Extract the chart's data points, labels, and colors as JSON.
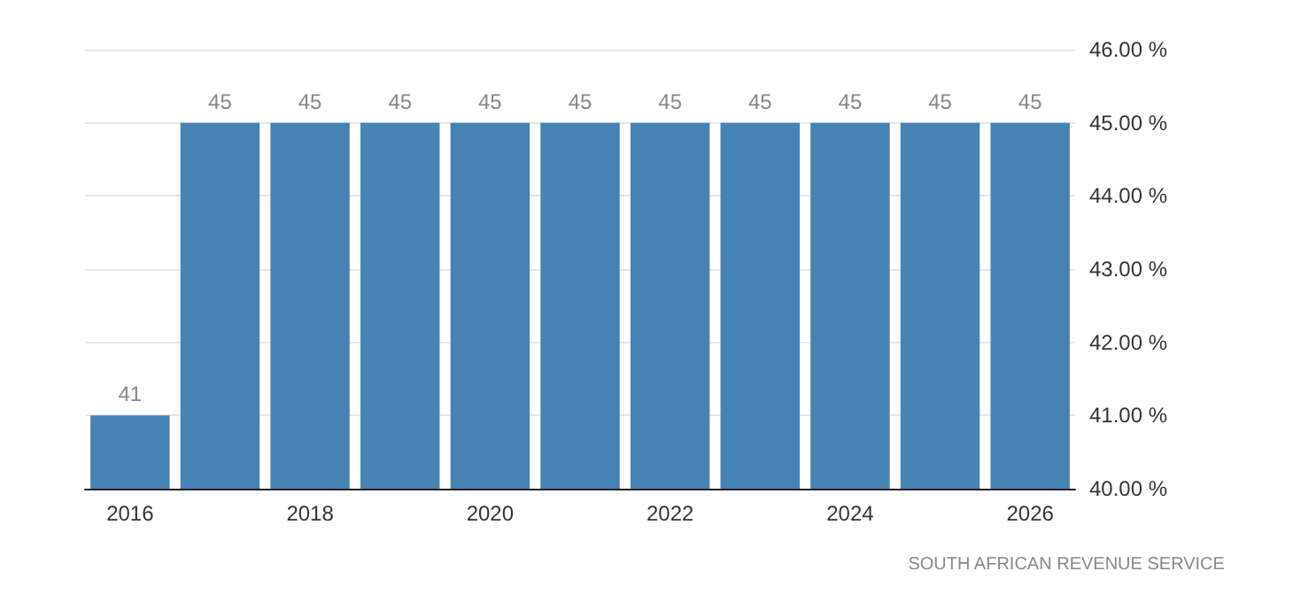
{
  "chart_data": {
    "type": "bar",
    "categories": [
      "2016",
      null,
      "2018",
      null,
      "2020",
      null,
      "2022",
      null,
      "2024",
      null,
      "2026"
    ],
    "values": [
      41,
      45,
      45,
      45,
      45,
      45,
      45,
      45,
      45,
      45,
      45
    ],
    "color": "#4682b4",
    "data_labels": true,
    "ylim": [
      40,
      46
    ],
    "yticks": [
      {
        "value": 40,
        "label": "40.00 %"
      },
      {
        "value": 41,
        "label": "41.00 %"
      },
      {
        "value": 42,
        "label": "42.00 %"
      },
      {
        "value": 43,
        "label": "43.00 %"
      },
      {
        "value": 44,
        "label": "44.00 %"
      },
      {
        "value": 45,
        "label": "45.00 %"
      },
      {
        "value": 46,
        "label": "46.00 %"
      }
    ],
    "grid": "y",
    "annotations": [
      "SOUTH AFRICAN REVENUE SERVICE"
    ]
  }
}
